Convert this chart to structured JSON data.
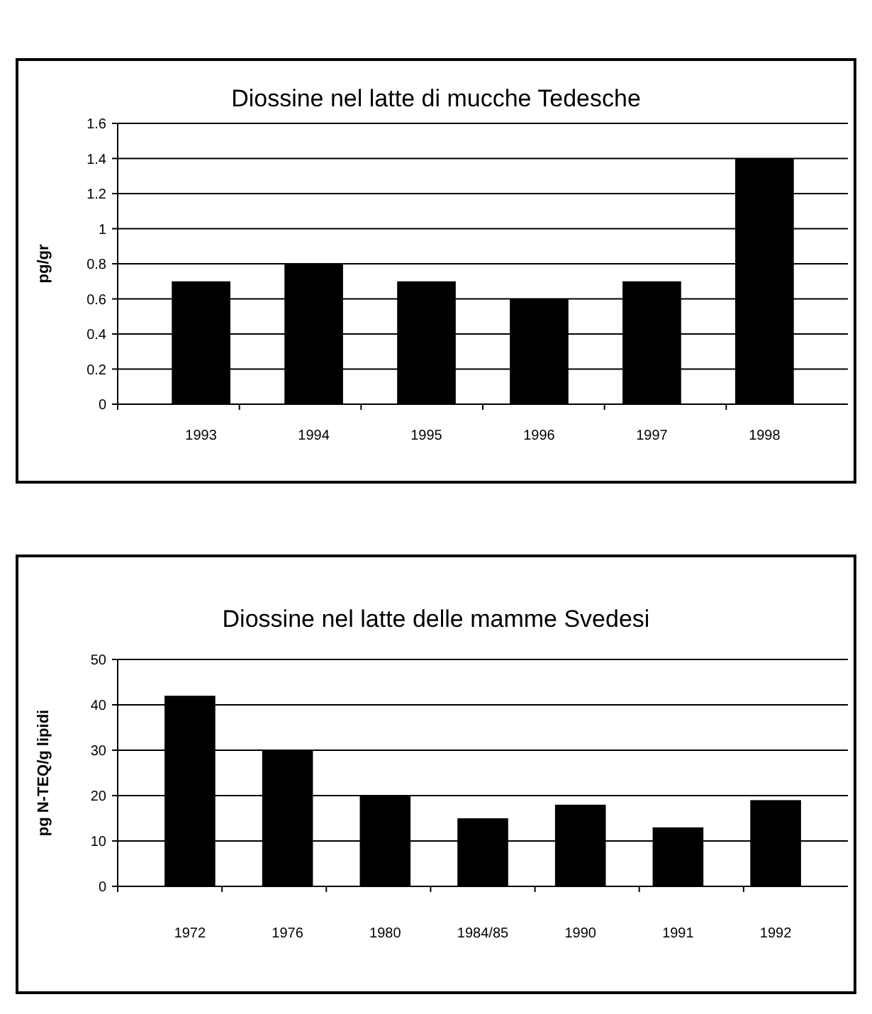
{
  "chart_data": [
    {
      "type": "bar",
      "title": "Diossine nel latte di mucche Tedesche",
      "ylabel": "pg/gr",
      "categories": [
        "1993",
        "1994",
        "1995",
        "1996",
        "1997",
        "1998"
      ],
      "values": [
        0.7,
        0.8,
        0.7,
        0.6,
        0.7,
        1.4
      ],
      "color": "#000000",
      "ylim": [
        0,
        1.6
      ],
      "yticks": [
        0,
        0.2,
        0.4,
        0.6,
        0.8,
        1,
        1.2,
        1.4,
        1.6
      ],
      "grid": "y"
    },
    {
      "type": "bar",
      "title": "Diossine nel latte delle mamme Svedesi",
      "ylabel": "pg N-TEQ/g lipidi",
      "categories": [
        "1972",
        "1976",
        "1980",
        "1984/85",
        "1990",
        "1991",
        "1992"
      ],
      "values": [
        42,
        30,
        20,
        15,
        18,
        13,
        19
      ],
      "color": "#000000",
      "ylim": [
        0,
        50
      ],
      "yticks": [
        0,
        10,
        20,
        30,
        40,
        50
      ],
      "grid": "y"
    }
  ]
}
